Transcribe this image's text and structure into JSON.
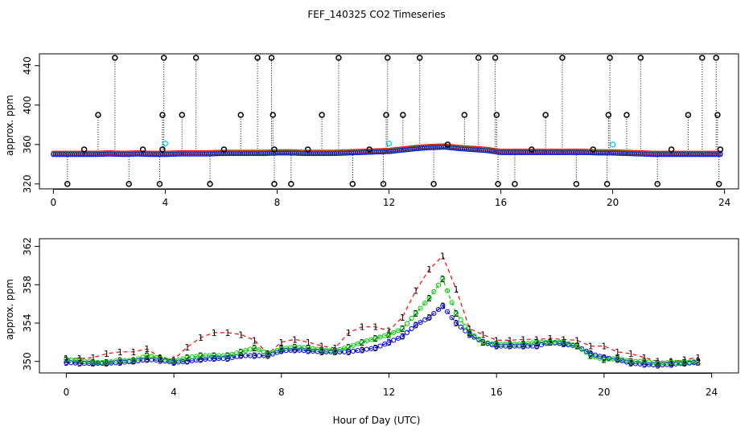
{
  "figure": {
    "title": "FEF_140325  CO2 Timeseries",
    "xlabel": "Hour of Day (UTC)"
  },
  "colors": {
    "raw": "#000000",
    "flagged": "#00c8ff",
    "series1": "#ff0000",
    "series2": "#00cc00",
    "series3": "#0000ff"
  },
  "chart_data": [
    {
      "type": "scatter",
      "panel": "top",
      "title": "FEF_140325  CO2 Timeseries",
      "xlabel": "",
      "ylabel": "approx. ppm",
      "xlim": [
        -0.5,
        24.5
      ],
      "ylim": [
        315,
        452
      ],
      "xticks": [
        0,
        4,
        8,
        12,
        16,
        20,
        24
      ],
      "yticks": [
        320,
        360,
        400,
        440
      ],
      "grid": false,
      "baseline_hours": [
        0,
        0.5,
        1,
        1.5,
        2,
        2.5,
        3,
        3.5,
        4,
        4.5,
        5,
        5.5,
        6,
        6.5,
        7,
        7.5,
        8,
        8.5,
        9,
        9.5,
        10,
        10.5,
        11,
        11.5,
        12,
        12.5,
        13,
        13.5,
        14,
        14.5,
        15,
        15.5,
        16,
        16.5,
        17,
        17.5,
        18,
        18.5,
        19,
        19.5,
        20,
        20.5,
        21,
        21.5,
        22,
        22.5,
        23,
        23.5,
        23.9
      ],
      "baseline_ppm": [
        350,
        350,
        350,
        350,
        350.5,
        350,
        350.5,
        350,
        350,
        350.5,
        350.5,
        350.5,
        351,
        351,
        351,
        351,
        351.5,
        351.5,
        351,
        351,
        351,
        351.5,
        352,
        352.5,
        353,
        354.5,
        356,
        357,
        357.5,
        356,
        355,
        354,
        352,
        352,
        352,
        352,
        352,
        352,
        352,
        351.5,
        351.5,
        351,
        350.5,
        350,
        350,
        350,
        350,
        350,
        350
      ],
      "spikes": [
        {
          "x": 0.5,
          "y": 320
        },
        {
          "x": 1.1,
          "y": 355
        },
        {
          "x": 1.6,
          "y": 390
        },
        {
          "x": 2.2,
          "y": 448
        },
        {
          "x": 2.7,
          "y": 320
        },
        {
          "x": 3.2,
          "y": 355
        },
        {
          "x": 3.8,
          "y": 320
        },
        {
          "x": 3.9,
          "y": 355
        },
        {
          "x": 3.9,
          "y": 390
        },
        {
          "x": 3.95,
          "y": 448
        },
        {
          "x": 4.6,
          "y": 390
        },
        {
          "x": 5.1,
          "y": 448
        },
        {
          "x": 5.6,
          "y": 320
        },
        {
          "x": 6.1,
          "y": 355
        },
        {
          "x": 6.7,
          "y": 390
        },
        {
          "x": 7.3,
          "y": 448
        },
        {
          "x": 7.8,
          "y": 448
        },
        {
          "x": 7.85,
          "y": 390
        },
        {
          "x": 7.9,
          "y": 320
        },
        {
          "x": 7.9,
          "y": 355
        },
        {
          "x": 8.5,
          "y": 320
        },
        {
          "x": 9.1,
          "y": 355
        },
        {
          "x": 9.6,
          "y": 390
        },
        {
          "x": 10.2,
          "y": 448
        },
        {
          "x": 10.7,
          "y": 320
        },
        {
          "x": 11.3,
          "y": 355
        },
        {
          "x": 11.8,
          "y": 320
        },
        {
          "x": 11.9,
          "y": 390
        },
        {
          "x": 11.95,
          "y": 448
        },
        {
          "x": 12.5,
          "y": 390
        },
        {
          "x": 13.1,
          "y": 448
        },
        {
          "x": 13.6,
          "y": 320
        },
        {
          "x": 14.1,
          "y": 360
        },
        {
          "x": 14.7,
          "y": 390
        },
        {
          "x": 15.2,
          "y": 448
        },
        {
          "x": 15.8,
          "y": 448
        },
        {
          "x": 15.85,
          "y": 390
        },
        {
          "x": 15.9,
          "y": 320
        },
        {
          "x": 16.5,
          "y": 320
        },
        {
          "x": 17.1,
          "y": 355
        },
        {
          "x": 17.6,
          "y": 390
        },
        {
          "x": 18.2,
          "y": 448
        },
        {
          "x": 18.7,
          "y": 320
        },
        {
          "x": 19.3,
          "y": 355
        },
        {
          "x": 19.8,
          "y": 320
        },
        {
          "x": 19.85,
          "y": 390
        },
        {
          "x": 19.9,
          "y": 448
        },
        {
          "x": 20.5,
          "y": 390
        },
        {
          "x": 21.0,
          "y": 448
        },
        {
          "x": 21.6,
          "y": 320
        },
        {
          "x": 22.1,
          "y": 355
        },
        {
          "x": 22.7,
          "y": 390
        },
        {
          "x": 23.2,
          "y": 448
        },
        {
          "x": 23.7,
          "y": 448
        },
        {
          "x": 23.75,
          "y": 390
        },
        {
          "x": 23.8,
          "y": 320
        },
        {
          "x": 23.85,
          "y": 355
        }
      ],
      "flagged_points": [
        {
          "x": 4.0,
          "y": 361
        },
        {
          "x": 12.0,
          "y": 361
        },
        {
          "x": 20.0,
          "y": 360
        }
      ]
    },
    {
      "type": "line",
      "panel": "bottom",
      "xlabel": "Hour of Day (UTC)",
      "ylabel": "approx. ppm",
      "xlim": [
        -1,
        25
      ],
      "ylim": [
        348.8,
        362.8
      ],
      "xticks": [
        0,
        4,
        8,
        12,
        16,
        20,
        24
      ],
      "yticks": [
        350,
        354,
        358,
        362
      ],
      "grid": false,
      "x": [
        0,
        0.5,
        1,
        1.5,
        2,
        2.5,
        3,
        3.5,
        4,
        4.5,
        5,
        5.5,
        6,
        6.5,
        7,
        7.5,
        8,
        8.5,
        9,
        9.5,
        10,
        10.5,
        11,
        11.5,
        12,
        12.5,
        13,
        13.5,
        14,
        14.5,
        15,
        15.5,
        16,
        16.5,
        17,
        17.5,
        18,
        18.5,
        19,
        19.5,
        20,
        20.5,
        21,
        21.5,
        22,
        22.5,
        23,
        23.5
      ],
      "series": [
        {
          "name": "1",
          "label": "1",
          "values": [
            350.3,
            350.3,
            350.4,
            350.8,
            351.0,
            351.0,
            351.3,
            350.4,
            350.2,
            351.5,
            352.5,
            353.0,
            353.0,
            352.8,
            352.2,
            350.8,
            352.0,
            352.3,
            352.0,
            351.6,
            351.4,
            353.0,
            353.6,
            353.6,
            353.2,
            354.6,
            357.4,
            359.6,
            361.0,
            357.5,
            353.4,
            352.8,
            352.2,
            352.2,
            352.3,
            352.3,
            352.4,
            352.3,
            352.2,
            351.6,
            351.6,
            351.0,
            350.8,
            350.4,
            350.0,
            350.0,
            350.2,
            350.4
          ]
        },
        {
          "name": "2",
          "label": "2",
          "values": [
            350.2,
            350.1,
            349.9,
            349.9,
            350.1,
            350.1,
            350.6,
            350.3,
            350.0,
            350.4,
            350.6,
            350.6,
            350.6,
            351.0,
            351.4,
            350.8,
            351.3,
            351.5,
            351.4,
            351.2,
            351.1,
            351.5,
            352.0,
            352.4,
            352.8,
            353.4,
            355.0,
            356.6,
            358.6,
            355.0,
            353.0,
            352.0,
            351.8,
            351.8,
            351.8,
            352.0,
            352.0,
            352.0,
            351.6,
            350.6,
            350.2,
            350.3,
            350.0,
            350.0,
            349.8,
            349.9,
            349.9,
            350.0
          ]
        },
        {
          "name": "3",
          "label": "3",
          "values": [
            349.9,
            349.8,
            349.8,
            349.8,
            349.9,
            350.0,
            350.2,
            350.1,
            349.9,
            350.0,
            350.2,
            350.3,
            350.3,
            350.6,
            350.6,
            350.6,
            351.1,
            351.2,
            351.1,
            351.0,
            351.0,
            351.0,
            351.2,
            351.4,
            352.0,
            352.6,
            353.8,
            354.6,
            355.8,
            354.0,
            352.8,
            352.0,
            351.6,
            351.6,
            351.6,
            351.6,
            352.0,
            351.8,
            351.6,
            350.8,
            350.4,
            350.2,
            349.8,
            349.7,
            349.6,
            349.7,
            349.8,
            349.9
          ]
        }
      ]
    }
  ]
}
